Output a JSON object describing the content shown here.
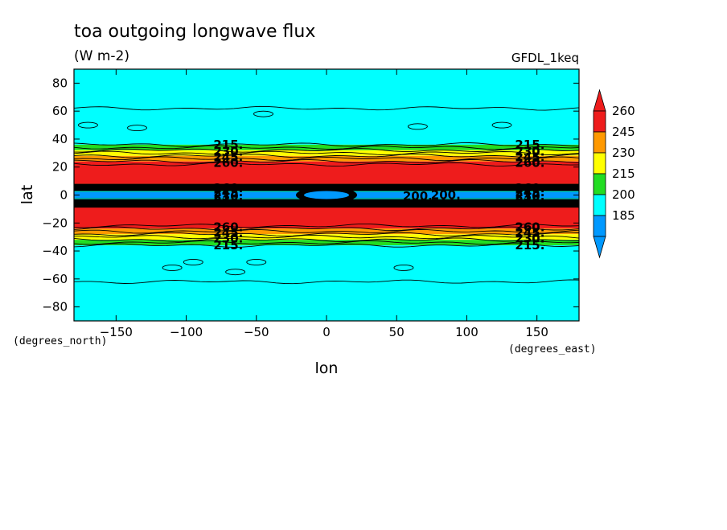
{
  "chart_data": {
    "type": "contour",
    "title": "toa outgoing longwave flux",
    "units": "(W m-2)",
    "model_label": "GFDL_1keq",
    "xlabel": "lon",
    "ylabel": "lat",
    "x_units_label": "(degrees_east)",
    "y_units_label": "(degrees_north)",
    "xlim": [
      -180,
      180
    ],
    "ylim": [
      -90,
      90
    ],
    "x_ticks": [
      -150,
      -100,
      -50,
      0,
      50,
      100,
      150
    ],
    "y_ticks": [
      -80,
      -60,
      -40,
      -20,
      0,
      20,
      40,
      60,
      80
    ],
    "levels": [
      185,
      200,
      215,
      230,
      245,
      260
    ],
    "colorbar": [
      {
        "label": "260",
        "color": "#ee1c1c"
      },
      {
        "label": "245",
        "color": "#ff9900"
      },
      {
        "label": "230",
        "color": "#ffff00"
      },
      {
        "label": "215",
        "color": "#22dd22"
      },
      {
        "label": "200",
        "color": "#00ffff"
      },
      {
        "label": "185",
        "color": "#0099ff"
      }
    ],
    "bands": [
      {
        "lat_from": 36,
        "lat_to": 90,
        "color": "#00ffff"
      },
      {
        "lat_from": 32,
        "lat_to": 36,
        "color": "#22dd22"
      },
      {
        "lat_from": 28,
        "lat_to": 32,
        "color": "#ffff00"
      },
      {
        "lat_from": 24,
        "lat_to": 28,
        "color": "#ff9900"
      },
      {
        "lat_from": 8,
        "lat_to": 24,
        "color": "#ee1c1c"
      },
      {
        "lat_from": 6,
        "lat_to": 8,
        "color": "#ff9900"
      },
      {
        "lat_from": 3,
        "lat_to": 6,
        "color": "#00ffff"
      },
      {
        "lat_from": -3,
        "lat_to": 3,
        "color": "#0099ff"
      },
      {
        "lat_from": -6,
        "lat_to": -3,
        "color": "#00ffff"
      },
      {
        "lat_from": -8,
        "lat_to": -6,
        "color": "#ff9900"
      },
      {
        "lat_from": -24,
        "lat_to": -8,
        "color": "#ee1c1c"
      },
      {
        "lat_from": -28,
        "lat_to": -24,
        "color": "#ff9900"
      },
      {
        "lat_from": -32,
        "lat_to": -28,
        "color": "#ffff00"
      },
      {
        "lat_from": -36,
        "lat_to": -32,
        "color": "#22dd22"
      },
      {
        "lat_from": -90,
        "lat_to": -36,
        "color": "#00ffff"
      }
    ],
    "contour_lines_lat": [
      36,
      34,
      32,
      30,
      28,
      26,
      24,
      22,
      -22,
      -24,
      -26,
      -28,
      -30,
      -32,
      -34,
      -36,
      62,
      -62
    ],
    "equatorial_black_band": [
      -9,
      8
    ],
    "contour_labels": [
      {
        "text": "215.",
        "lon": -70,
        "lat": 36
      },
      {
        "text": "230.",
        "lon": -70,
        "lat": 31
      },
      {
        "text": "245.",
        "lon": -70,
        "lat": 27
      },
      {
        "text": "260.",
        "lon": -70,
        "lat": 23
      },
      {
        "text": "260.",
        "lon": -70,
        "lat": -23
      },
      {
        "text": "245.",
        "lon": -70,
        "lat": -27
      },
      {
        "text": "230.",
        "lon": -70,
        "lat": -31
      },
      {
        "text": "215.",
        "lon": -70,
        "lat": -36
      },
      {
        "text": "215.",
        "lon": 145,
        "lat": 36
      },
      {
        "text": "230.",
        "lon": 145,
        "lat": 31
      },
      {
        "text": "245.",
        "lon": 145,
        "lat": 27
      },
      {
        "text": "260.",
        "lon": 145,
        "lat": 23
      },
      {
        "text": "260.",
        "lon": 145,
        "lat": -23
      },
      {
        "text": "245.",
        "lon": 145,
        "lat": -27
      },
      {
        "text": "230.",
        "lon": 145,
        "lat": -31
      },
      {
        "text": "215.",
        "lon": 145,
        "lat": -36
      },
      {
        "text": "260.",
        "lon": -70,
        "lat": 5
      },
      {
        "text": "245.",
        "lon": -70,
        "lat": 2
      },
      {
        "text": "230.",
        "lon": -70,
        "lat": -1
      },
      {
        "text": "215.",
        "lon": -70,
        "lat": -4
      },
      {
        "text": "200.",
        "lon": 65,
        "lat": -1
      },
      {
        "text": "200.",
        "lon": 85,
        "lat": 0
      },
      {
        "text": "260.",
        "lon": 145,
        "lat": 5
      },
      {
        "text": "245.",
        "lon": 145,
        "lat": 2
      },
      {
        "text": "230.",
        "lon": 145,
        "lat": -1
      },
      {
        "text": "215.",
        "lon": 145,
        "lat": -4
      }
    ]
  }
}
